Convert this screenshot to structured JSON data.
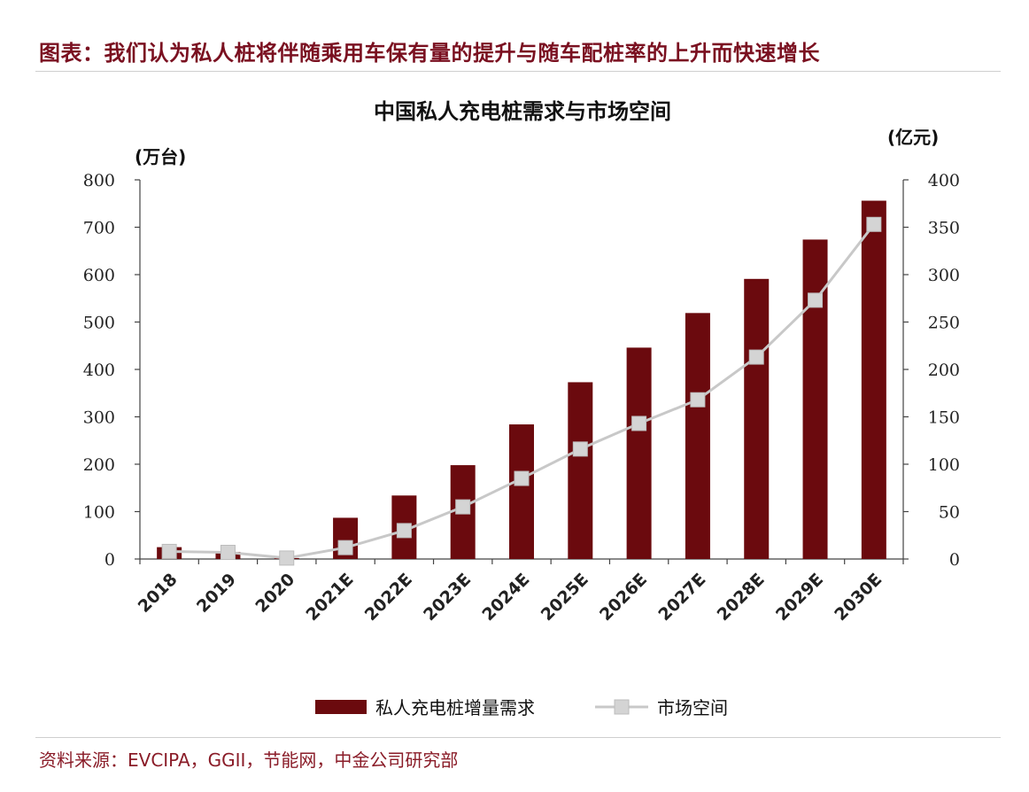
{
  "header": {
    "title": "图表：我们认为私人桩将伴随乘用车保有量的提升与随车配桩率的上升而快速增长"
  },
  "source": {
    "text": "资料来源：EVCIPA，GGII，节能网，中金公司研究部"
  },
  "chart_data": {
    "type": "bar",
    "title": "中国私人充电桩需求与市场空间",
    "y_left_unit": "(万台)",
    "y_right_unit": "(亿元)",
    "ylim_left": [
      0,
      800
    ],
    "ylim_right": [
      0,
      400
    ],
    "yticks_left": [
      "0",
      "100",
      "200",
      "300",
      "400",
      "500",
      "600",
      "700",
      "800"
    ],
    "yticks_right": [
      "0",
      "50",
      "100",
      "150",
      "200",
      "250",
      "300",
      "350",
      "400"
    ],
    "categories": [
      "2018",
      "2019",
      "2020",
      "2021E",
      "2022E",
      "2023E",
      "2024E",
      "2025E",
      "2026E",
      "2027E",
      "2028E",
      "2029E",
      "2030E"
    ],
    "series": [
      {
        "name": "私人充电桩增量需求",
        "type": "bar",
        "axis": "left",
        "color": "#6b0a0e",
        "values": [
          25,
          15,
          2,
          87,
          134,
          198,
          284,
          373,
          446,
          519,
          591,
          674,
          756
        ]
      },
      {
        "name": "市场空间",
        "type": "line",
        "axis": "right",
        "color": "#c8c8c8",
        "values": [
          8,
          7,
          1,
          12,
          30,
          55,
          85,
          116,
          143,
          168,
          213,
          273,
          353
        ]
      }
    ],
    "legend": {
      "position": "bottom"
    },
    "grid": false
  }
}
